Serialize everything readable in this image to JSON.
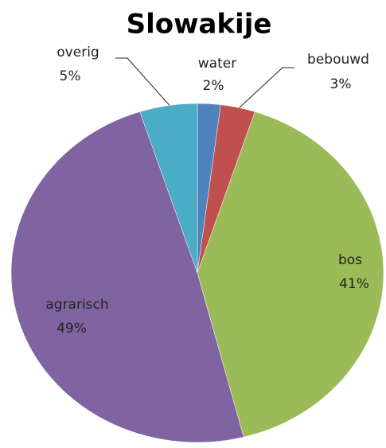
{
  "chart_data": {
    "type": "pie",
    "title": "Slowakije",
    "categories": [
      "water",
      "bebouwd",
      "bos",
      "agrarisch",
      "overig"
    ],
    "values": [
      2,
      3,
      41,
      49,
      5
    ],
    "value_labels": [
      "2%",
      "3%",
      "41%",
      "49%",
      "5%"
    ],
    "colors": [
      "#4f81bd",
      "#c0504d",
      "#9bbb59",
      "#8064a2",
      "#4bacc6"
    ]
  }
}
